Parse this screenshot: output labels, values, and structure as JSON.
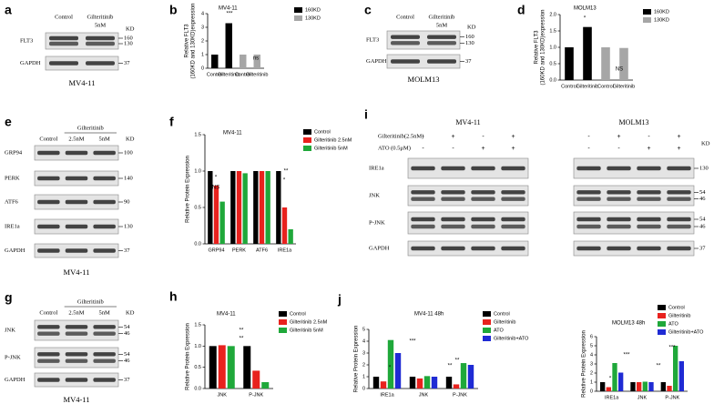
{
  "chart_data": [
    {
      "type": "bar",
      "letter": "b",
      "title": "MV4-11",
      "ylabel": [
        "Relative FLT3",
        "(160KD and 130KD)expression"
      ],
      "categories": [
        "Control",
        "Gilteritinib",
        "Control",
        "Gilteritinib"
      ],
      "series": [
        {
          "name": "160KD",
          "color": "#000000",
          "values": [
            1,
            3.3,
            null,
            null
          ]
        },
        {
          "name": "130KD",
          "color": "#a6a6a6",
          "values": [
            null,
            null,
            1,
            1
          ]
        }
      ],
      "ylim": [
        0,
        4
      ],
      "yticks": [
        0,
        1,
        2,
        3,
        4
      ],
      "annotations": [
        "***",
        "ns"
      ]
    },
    {
      "type": "bar",
      "letter": "d",
      "title": "MOLM13",
      "ylabel": [
        "Relative FLT3",
        "(160KD and 130KD)expression"
      ],
      "categories": [
        "Control",
        "Gilteritinib",
        "Control",
        "Gilteritinib"
      ],
      "series": [
        {
          "name": "160KD",
          "color": "#000000",
          "values": [
            1,
            1.62,
            null,
            null
          ]
        },
        {
          "name": "130KD",
          "color": "#a6a6a6",
          "values": [
            null,
            null,
            1,
            0.98
          ]
        }
      ],
      "ylim": [
        0,
        2
      ],
      "yticks": [
        {
          "value": 0,
          "label": "0.0"
        },
        0.5,
        {
          "value": 1,
          "label": "1.0"
        },
        1.5,
        {
          "value": 2,
          "label": "2.0"
        }
      ],
      "annotations": [
        "*",
        "NS"
      ]
    },
    {
      "type": "bar",
      "letter": "f",
      "title": "MV4-11",
      "ylabel": [
        "Relative  Protein Expression"
      ],
      "categories": [
        "GRP94",
        "PERK",
        "ATF6",
        "IRE1a"
      ],
      "series": [
        {
          "name": "Control",
          "color": "#000000",
          "values": [
            1,
            1,
            1,
            1
          ]
        },
        {
          "name": "Gilteritinib 2.5nM",
          "color": "#e8221e",
          "values": [
            0.8,
            1,
            1,
            0.5
          ]
        },
        {
          "name": "Gilteritinib 5nM",
          "color": "#1fa83a",
          "values": [
            0.58,
            0.97,
            1,
            0.2
          ]
        }
      ],
      "ylim": [
        0,
        1.5
      ],
      "yticks": [
        {
          "value": 0,
          "label": "0.0"
        },
        0.5,
        {
          "value": 1,
          "label": "1.0"
        },
        1.5
      ],
      "annotations": [
        "*",
        "NS",
        "**",
        "*"
      ]
    },
    {
      "type": "bar",
      "letter": "h",
      "title": "MV4-11",
      "ylabel": [
        "Relative  Protein Expression"
      ],
      "categories": [
        "JNK",
        "P-JNK"
      ],
      "series": [
        {
          "name": "Control",
          "color": "#000000",
          "values": [
            1,
            1
          ]
        },
        {
          "name": "Gilteritinib 2.5nM",
          "color": "#e8221e",
          "values": [
            1.02,
            0.42
          ]
        },
        {
          "name": "Gilteritinib 5nM",
          "color": "#1fa83a",
          "values": [
            1,
            0.15
          ]
        }
      ],
      "ylim": [
        0,
        1.5
      ],
      "yticks": [
        {
          "value": 0,
          "label": "0.0"
        },
        0.5,
        {
          "value": 1,
          "label": "1.0"
        },
        1.5
      ],
      "annotations": [
        "**",
        "**"
      ]
    },
    {
      "type": "bar",
      "letter": "j",
      "title": "MV4-11  48h",
      "ylabel": [
        "Relative  Protein Expression"
      ],
      "categories": [
        "IRE1a",
        "JNK",
        "P-JNK"
      ],
      "series": [
        {
          "name": "Control",
          "color": "#000000",
          "values": [
            1,
            1,
            1
          ]
        },
        {
          "name": "Gilteritinib",
          "color": "#e8221e",
          "values": [
            0.6,
            0.85,
            0.35
          ]
        },
        {
          "name": "ATO",
          "color": "#1fa83a",
          "values": [
            4.1,
            1.05,
            2.15
          ]
        },
        {
          "name": "Gilteritinib+ATO",
          "color": "#1f2bd4",
          "values": [
            3,
            1,
            2
          ]
        }
      ],
      "ylim": [
        0,
        5
      ],
      "yticks": [
        0,
        1,
        2,
        3,
        4,
        5
      ],
      "annotations": [
        "*",
        "***",
        "**",
        "**"
      ]
    },
    {
      "type": "bar",
      "title": "MOLM13  48h",
      "ylabel": [
        "Relative  Protein Expression"
      ],
      "categories": [
        "IRE1a",
        "JNK",
        "P-JNK"
      ],
      "series": [
        {
          "name": "Control",
          "color": "#000000",
          "values": [
            1,
            1,
            1
          ]
        },
        {
          "name": "Gilteritinib",
          "color": "#e8221e",
          "values": [
            0.45,
            1,
            0.6
          ]
        },
        {
          "name": "ATO",
          "color": "#1fa83a",
          "values": [
            3.1,
            1.05,
            5
          ]
        },
        {
          "name": "Gilteritinib+ATO",
          "color": "#1f2bd4",
          "values": [
            2.05,
            1,
            3.3
          ]
        }
      ],
      "ylim": [
        0,
        6
      ],
      "yticks": [
        0,
        1,
        2,
        3,
        4,
        5,
        6
      ],
      "annotations": [
        "*",
        "***",
        "**",
        "***"
      ]
    }
  ],
  "blots": [
    {
      "letter": "a",
      "lanes": [
        [
          "Control"
        ],
        [
          "Gilteritinib",
          "5nM"
        ]
      ],
      "kd": "KD",
      "rows": [
        {
          "label": "FLT3",
          "markers": [
            160,
            130
          ]
        },
        {
          "label": "GAPDH",
          "markers": [
            37
          ]
        }
      ],
      "caption": "MV4-11"
    },
    {
      "letter": "c",
      "lanes": [
        [
          "Control"
        ],
        [
          "Gilteritinib",
          "5nM"
        ]
      ],
      "kd": "KD",
      "rows": [
        {
          "label": "FLT3",
          "markers": [
            160,
            130
          ]
        },
        {
          "label": "GAPDH",
          "markers": [
            37
          ]
        }
      ],
      "caption": "MOLM13"
    },
    {
      "letter": "e",
      "header": "Gilteritinib",
      "lanes": [
        [
          "Control"
        ],
        [
          "2.5nM"
        ],
        [
          "5nM"
        ]
      ],
      "kd": "KD",
      "rows": [
        {
          "label": "GRP94",
          "markers": [
            100
          ]
        },
        {
          "label": "PERK",
          "markers": [
            140
          ]
        },
        {
          "label": "ATF6",
          "markers": [
            90
          ]
        },
        {
          "label": "IRE1a",
          "markers": [
            130
          ]
        },
        {
          "label": "GAPDH",
          "markers": [
            37
          ]
        }
      ],
      "caption": "MV4-11"
    },
    {
      "letter": "g",
      "header": "Gilteritinib",
      "lanes": [
        [
          "Control"
        ],
        [
          "2.5nM"
        ],
        [
          "5nM"
        ]
      ],
      "kd": "KD",
      "rows": [
        {
          "label": "JNK",
          "markers": [
            54,
            46
          ]
        },
        {
          "label": "P-JNK",
          "markers": [
            54,
            46
          ]
        },
        {
          "label": "GAPDH",
          "markers": [
            37
          ]
        }
      ],
      "caption": "MV4-11"
    },
    {
      "letter": "i",
      "groups": [
        "MV4-11",
        "MOLM13"
      ],
      "kd": "KD",
      "conditions": [
        {
          "label": "Gilteritinib(2.5nM)",
          "signs": [
            "-",
            "+",
            "-",
            "+"
          ]
        },
        {
          "label": "ATO (0.5μM)",
          "signs": [
            "-",
            "-",
            "+",
            "+"
          ]
        }
      ],
      "rows": [
        {
          "label": "IRE1a",
          "markers": [
            130
          ]
        },
        {
          "label": "JNK",
          "markers": [
            54,
            46
          ]
        },
        {
          "label": "P-JNK",
          "markers": [
            54,
            46
          ]
        },
        {
          "label": "GAPDH",
          "markers": [
            37
          ]
        }
      ]
    }
  ]
}
